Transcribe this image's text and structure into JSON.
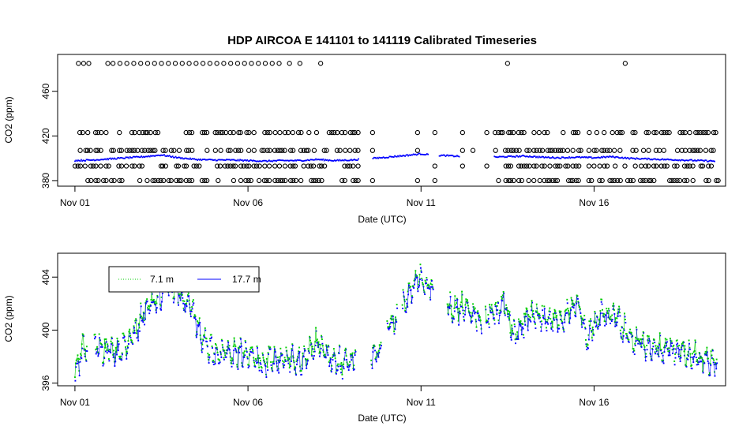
{
  "chart_data": [
    {
      "type": "scatter",
      "title": "HDP   AIRCOA  E   141101  to  141119   Calibrated Timeseries",
      "xlabel": "Date (UTC)",
      "ylabel": "CO2 (ppm)",
      "x_ticks": [
        "Nov 01",
        "Nov 06",
        "Nov 11",
        "Nov 16"
      ],
      "x_tick_days": [
        1,
        6,
        11,
        16
      ],
      "xlim": [
        0.5,
        19.8
      ],
      "y_ticks": [
        "380",
        "420",
        "460"
      ],
      "y_tick_values": [
        380,
        420,
        460
      ],
      "ylim": [
        375,
        493
      ],
      "grid": false,
      "series": [
        {
          "marker": "open-circle",
          "color": "#000000",
          "levels": [
            380,
            393,
            407,
            423,
            485
          ],
          "gaps": [
            [
              9.2,
              9.6
            ],
            [
              11.2,
              11.5
            ],
            [
              12.1,
              13.1
            ]
          ],
          "sparse_days": [
            9.6,
            10.5,
            10.9,
            11.4,
            12.2,
            12.5,
            12.9
          ],
          "top_days": [
            1.1,
            1.25,
            1.4,
            1.95,
            2.1,
            2.3,
            2.5,
            2.7,
            2.9,
            3.1,
            3.3,
            3.5,
            3.7,
            3.9,
            4.1,
            4.3,
            4.5,
            4.7,
            4.9,
            5.1,
            5.3,
            5.5,
            5.7,
            5.9,
            6.1,
            6.3,
            6.5,
            6.7,
            6.9,
            7.2,
            7.5,
            8.1,
            13.5,
            16.9
          ]
        },
        {
          "marker": "point",
          "color": "#0000ff",
          "values": [
            [
              1.0,
              398
            ],
            [
              1.5,
              398.5
            ],
            [
              2.0,
              399.5
            ],
            [
              2.5,
              400.5
            ],
            [
              3.0,
              401.5
            ],
            [
              3.5,
              403
            ],
            [
              4.0,
              400.5
            ],
            [
              4.5,
              399
            ],
            [
              5.0,
              398.5
            ],
            [
              5.5,
              398.5
            ],
            [
              6.0,
              398
            ],
            [
              6.5,
              397.5
            ],
            [
              7.0,
              398
            ],
            [
              7.5,
              398
            ],
            [
              8.0,
              399
            ],
            [
              8.5,
              398
            ],
            [
              9.0,
              398.5
            ],
            [
              10.0,
              401
            ],
            [
              10.7,
              403
            ],
            [
              11.0,
              404
            ],
            [
              11.3,
              403
            ],
            [
              12.0,
              402
            ],
            [
              12.5,
              401.5
            ],
            [
              13.0,
              401
            ],
            [
              13.5,
              401.5
            ],
            [
              14.0,
              402
            ],
            [
              14.5,
              401
            ],
            [
              15.0,
              400.5
            ],
            [
              15.5,
              401
            ],
            [
              16.0,
              400.5
            ],
            [
              16.5,
              401.5
            ],
            [
              17.0,
              400
            ],
            [
              17.5,
              399.5
            ],
            [
              18.0,
              399
            ],
            [
              18.5,
              398.5
            ],
            [
              19.0,
              398
            ],
            [
              19.5,
              397.5
            ]
          ]
        }
      ]
    },
    {
      "type": "scatter",
      "xlabel": "Date (UTC)",
      "ylabel": "CO2 (ppm)",
      "x_ticks": [
        "Nov 01",
        "Nov 06",
        "Nov 11",
        "Nov 16"
      ],
      "x_tick_days": [
        1,
        6,
        11,
        16
      ],
      "xlim": [
        0.5,
        19.8
      ],
      "y_ticks": [
        "396",
        "400",
        "404"
      ],
      "y_tick_values": [
        396,
        400,
        404
      ],
      "ylim": [
        395.8,
        405.8
      ],
      "grid": false,
      "legend": {
        "position": "top-left",
        "entries": [
          "7.1 m",
          "17.7 m"
        ]
      },
      "series": [
        {
          "name": "7.1 m",
          "color": "#00cc00",
          "marker": "point-line",
          "values": [
            [
              1.0,
              396.6
            ],
            [
              1.2,
              398.6
            ],
            [
              1.5,
              399.2
            ],
            [
              1.8,
              398.6
            ],
            [
              2.2,
              398.4
            ],
            [
              2.5,
              399.0
            ],
            [
              2.8,
              400.4
            ],
            [
              3.0,
              401.6
            ],
            [
              3.3,
              402.2
            ],
            [
              3.6,
              403.0
            ],
            [
              3.8,
              403.6
            ],
            [
              4.1,
              402.6
            ],
            [
              4.4,
              401.4
            ],
            [
              4.7,
              399.2
            ],
            [
              5.0,
              398.4
            ],
            [
              5.5,
              398.3
            ],
            [
              6.0,
              398.3
            ],
            [
              6.4,
              397.7
            ],
            [
              6.8,
              398.0
            ],
            [
              7.2,
              397.8
            ],
            [
              7.6,
              397.9
            ],
            [
              8.0,
              399.3
            ],
            [
              8.4,
              397.9
            ],
            [
              8.8,
              397.6
            ],
            [
              9.1,
              398.1
            ],
            [
              9.7,
              398.2
            ],
            [
              10.1,
              400.5
            ],
            [
              10.6,
              402.4
            ],
            [
              10.9,
              404.0
            ],
            [
              11.3,
              403.2
            ],
            [
              11.9,
              401.6
            ],
            [
              12.3,
              401.9
            ],
            [
              12.7,
              401.0
            ],
            [
              13.1,
              401.2
            ],
            [
              13.4,
              402.2
            ],
            [
              13.7,
              399.6
            ],
            [
              14.1,
              401.2
            ],
            [
              14.6,
              401.1
            ],
            [
              15.1,
              400.8
            ],
            [
              15.5,
              402.5
            ],
            [
              15.8,
              399.6
            ],
            [
              16.2,
              401.2
            ],
            [
              16.6,
              401.0
            ],
            [
              17.0,
              399.8
            ],
            [
              17.4,
              399.0
            ],
            [
              17.8,
              398.6
            ],
            [
              18.2,
              398.8
            ],
            [
              18.6,
              398.5
            ],
            [
              19.0,
              398.0
            ],
            [
              19.3,
              397.8
            ],
            [
              19.6,
              397.6
            ]
          ]
        },
        {
          "name": "17.7 m",
          "color": "#0000ff",
          "marker": "point-line",
          "values": [
            [
              1.0,
              396.2
            ],
            [
              1.2,
              398.4
            ],
            [
              1.5,
              399.0
            ],
            [
              1.8,
              398.4
            ],
            [
              2.2,
              398.2
            ],
            [
              2.5,
              398.8
            ],
            [
              2.8,
              400.2
            ],
            [
              3.0,
              401.4
            ],
            [
              3.3,
              402.0
            ],
            [
              3.6,
              402.8
            ],
            [
              3.8,
              403.4
            ],
            [
              4.1,
              402.4
            ],
            [
              4.4,
              401.2
            ],
            [
              4.7,
              399.0
            ],
            [
              5.0,
              398.2
            ],
            [
              5.5,
              398.1
            ],
            [
              6.0,
              398.1
            ],
            [
              6.4,
              397.5
            ],
            [
              6.8,
              397.8
            ],
            [
              7.2,
              397.6
            ],
            [
              7.6,
              397.7
            ],
            [
              8.0,
              399.1
            ],
            [
              8.4,
              397.7
            ],
            [
              8.8,
              397.4
            ],
            [
              9.1,
              397.9
            ],
            [
              9.7,
              398.0
            ],
            [
              10.1,
              400.3
            ],
            [
              10.6,
              402.2
            ],
            [
              10.9,
              403.8
            ],
            [
              11.3,
              403.0
            ],
            [
              11.9,
              401.4
            ],
            [
              12.3,
              401.7
            ],
            [
              12.7,
              400.8
            ],
            [
              13.1,
              401.0
            ],
            [
              13.4,
              402.0
            ],
            [
              13.7,
              399.4
            ],
            [
              14.1,
              401.0
            ],
            [
              14.6,
              400.9
            ],
            [
              15.1,
              400.6
            ],
            [
              15.5,
              402.3
            ],
            [
              15.8,
              399.4
            ],
            [
              16.2,
              401.0
            ],
            [
              16.6,
              400.8
            ],
            [
              17.0,
              399.6
            ],
            [
              17.4,
              398.8
            ],
            [
              17.8,
              398.4
            ],
            [
              18.2,
              398.6
            ],
            [
              18.6,
              398.3
            ],
            [
              19.0,
              397.8
            ],
            [
              19.3,
              397.6
            ],
            [
              19.6,
              397.4
            ]
          ]
        }
      ]
    }
  ]
}
